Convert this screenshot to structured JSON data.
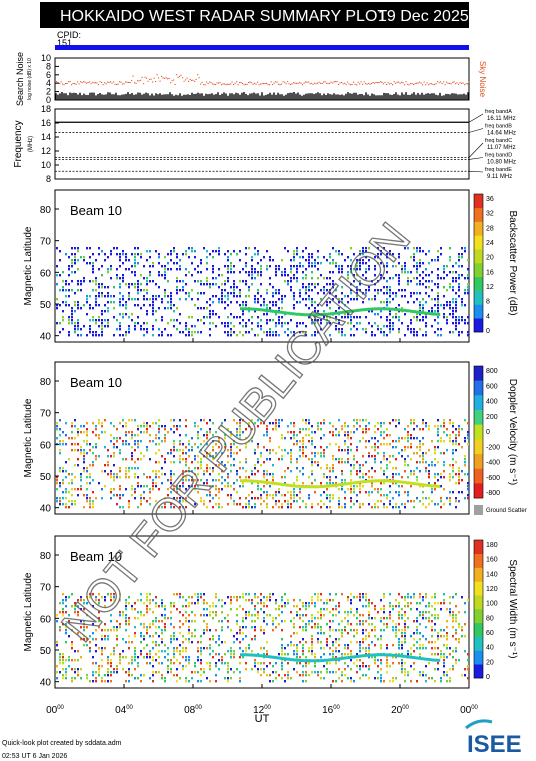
{
  "header": {
    "title": "HOKKAIDO WEST RADAR SUMMARY PLOT",
    "date": "19 Dec 2025",
    "cpid_label": "CPID:",
    "cpid_value": "151"
  },
  "colors": {
    "header_bg": "#000000",
    "cpid_bar": "#1010ee",
    "sky_noise": "#e05020",
    "search_noise": "#000000",
    "ground_scatter": "#a0a0a0"
  },
  "footer": {
    "credit": "Quick-look plot created by sddata.adm",
    "timestamp": "02:53 UT  6 Jan 2026",
    "logo_text": "ISEE"
  },
  "watermark": "NOT FOR PUBLICATION",
  "chart_data": [
    {
      "type": "area",
      "name": "noise",
      "ylabel": "Search Noise",
      "ylabel_sub": "log noise (dB) x 10",
      "series_label": "Sky Noise",
      "yticks": [
        "0",
        "2",
        "4",
        "6",
        "8",
        "10"
      ],
      "ylim": [
        0,
        10
      ],
      "sky_noise_mean": 4,
      "search_noise_mean": 1
    },
    {
      "type": "line",
      "name": "frequency",
      "ylabel": "Frequency",
      "ylabel_unit": "(MHz)",
      "yticks": [
        "8",
        "10",
        "12",
        "14",
        "16",
        "18"
      ],
      "ylim": [
        8,
        18
      ],
      "bands": [
        {
          "label": "freq bandA",
          "value": "16.11 MHz",
          "freq": 16.11
        },
        {
          "label": "freq bandB",
          "value": "14.64 MHz",
          "freq": 14.64
        },
        {
          "label": "freq bandC",
          "value": "11.07 MHz",
          "freq": 11.07
        },
        {
          "label": "freq bandD",
          "value": "10.80 MHz",
          "freq": 10.8
        },
        {
          "label": "freq bandE",
          "value": "9.11 MHz",
          "freq": 9.11
        }
      ]
    },
    {
      "type": "heatmap",
      "name": "power",
      "beam": "Beam 10",
      "ylabel": "Magnetic Latitude",
      "yticks": [
        "40",
        "50",
        "60",
        "70",
        "80"
      ],
      "ylim": [
        38,
        86
      ],
      "cbar_title": "Backscatter Power (dB)",
      "cbar_ticks": [
        "0",
        "4",
        "8",
        "12",
        "16",
        "20",
        "24",
        "28",
        "32",
        "36"
      ],
      "cbar_colors": [
        "#1a1ae0",
        "#1a8ff0",
        "#20c0c0",
        "#30c860",
        "#80d030",
        "#c0d820",
        "#f0e020",
        "#f0b020",
        "#f07020",
        "#e03020"
      ],
      "data_lat_range": [
        40,
        68
      ],
      "enhanced_band_lat": 48
    },
    {
      "type": "heatmap",
      "name": "velocity",
      "beam": "Beam 10",
      "ylabel": "Magnetic Latitude",
      "yticks": [
        "40",
        "50",
        "60",
        "70",
        "80"
      ],
      "ylim": [
        38,
        86
      ],
      "cbar_title": "Doppler Velocity (m s⁻¹)",
      "cbar_ticks": [
        "800",
        "600",
        "400",
        "200",
        "0",
        "-200",
        "-400",
        "-600",
        "-800"
      ],
      "cbar_colors": [
        "#2020c8",
        "#2070e8",
        "#20b0e0",
        "#40d080",
        "#c0e020",
        "#f0d020",
        "#f0a020",
        "#f06020",
        "#e02020"
      ],
      "ground_scatter_label": "Ground Scatter",
      "data_lat_range": [
        40,
        68
      ],
      "enhanced_band_lat": 48
    },
    {
      "type": "heatmap",
      "name": "width",
      "beam": "Beam 10",
      "ylabel": "Magnetic Latitude",
      "yticks": [
        "40",
        "50",
        "60",
        "70",
        "80"
      ],
      "ylim": [
        38,
        86
      ],
      "cbar_title": "Spectral Width (m s⁻¹)",
      "cbar_ticks": [
        "0",
        "20",
        "40",
        "60",
        "80",
        "100",
        "120",
        "140",
        "160",
        "180"
      ],
      "cbar_colors": [
        "#1a1ae0",
        "#1a8ff0",
        "#20c0c0",
        "#30c860",
        "#80d030",
        "#c0d820",
        "#f0e020",
        "#f0b020",
        "#f07020",
        "#e03020"
      ],
      "data_lat_range": [
        40,
        68
      ],
      "enhanced_band_lat": 48
    }
  ],
  "xaxis": {
    "label": "UT",
    "ticks": [
      {
        "h": "00",
        "m": "00"
      },
      {
        "h": "04",
        "m": "00"
      },
      {
        "h": "08",
        "m": "00"
      },
      {
        "h": "12",
        "m": "00"
      },
      {
        "h": "16",
        "m": "00"
      },
      {
        "h": "20",
        "m": "00"
      },
      {
        "h": "00",
        "m": "00"
      }
    ]
  }
}
